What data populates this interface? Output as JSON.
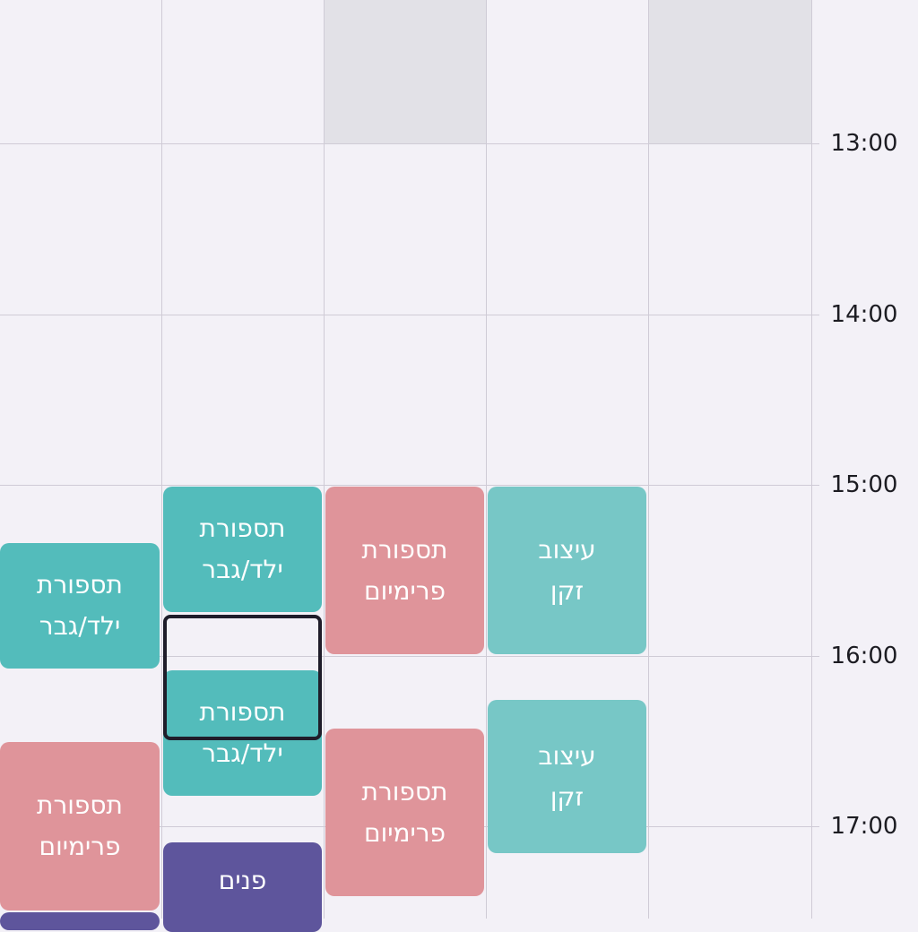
{
  "time_labels": [
    "13:00",
    "14:00",
    "15:00",
    "16:00",
    "17:00"
  ],
  "colors": {
    "background": "#f3f1f7",
    "gridline": "#cfcbd6",
    "unavailable": "#e2e1e7",
    "teal": "#53bcbb",
    "light_teal": "#77c7c6",
    "pink": "#df949a",
    "purple": "#5e559c",
    "selection_border": "#1f1d2a"
  },
  "appointments": [
    {
      "line1": "תספורת",
      "line2": "ילד/גבר"
    },
    {
      "line1": "תספורת",
      "line2": "פרימיום"
    },
    {
      "line1": "תספורת",
      "line2": "ילד/גבר"
    },
    {
      "line1": "תספורת",
      "line2": "ילד/גבר"
    },
    {
      "line1": "פנים",
      "line2": ""
    },
    {
      "line1": "תספורת",
      "line2": "פרימיום"
    },
    {
      "line1": "תספורת",
      "line2": "פרימיום"
    },
    {
      "line1": "עיצוב",
      "line2": "זקן"
    },
    {
      "line1": "עיצוב",
      "line2": "זקן"
    },
    {
      "line1": "",
      "line2": ""
    }
  ]
}
